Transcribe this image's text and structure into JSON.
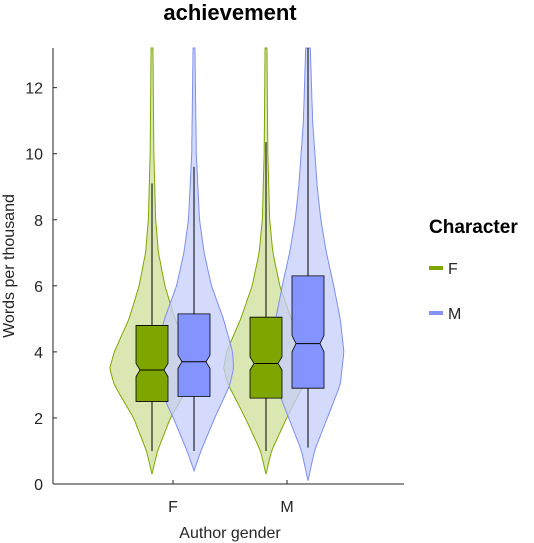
{
  "chart_data": {
    "type": "violin",
    "title": "achievement",
    "xlabel": "Author gender",
    "ylabel": "Words per thousand",
    "categories": [
      "F",
      "M"
    ],
    "ylim": [
      0,
      13.2
    ],
    "yticks": [
      0,
      2,
      4,
      6,
      8,
      10,
      12
    ],
    "grid": false,
    "legend": {
      "title": "Character",
      "placement": "right",
      "entries": [
        "F",
        "M"
      ]
    },
    "series": [
      {
        "name": "F",
        "color": "#7fa600",
        "fill": "#cfdf99",
        "box_color": "#7fa600",
        "violins": [
          {
            "category": "F",
            "min": 0.3,
            "max": 13.2,
            "whisker_low": 1.0,
            "q1": 2.5,
            "median": 3.45,
            "q3": 4.8,
            "whisker_high": 9.1,
            "notch_low": 3.25,
            "notch_high": 3.65,
            "density": [
              [
                0.3,
                0.0
              ],
              [
                1.0,
                0.12
              ],
              [
                2.0,
                0.4
              ],
              [
                3.0,
                0.82
              ],
              [
                3.5,
                0.92
              ],
              [
                4.0,
                0.82
              ],
              [
                5.0,
                0.5
              ],
              [
                6.0,
                0.28
              ],
              [
                7.0,
                0.14
              ],
              [
                8.0,
                0.08
              ],
              [
                10.0,
                0.04
              ],
              [
                13.2,
                0.02
              ]
            ]
          },
          {
            "category": "M",
            "min": 0.3,
            "max": 13.2,
            "whisker_low": 1.0,
            "q1": 2.6,
            "median": 3.65,
            "q3": 5.05,
            "whisker_high": 10.35,
            "notch_low": 3.45,
            "notch_high": 3.85,
            "density": [
              [
                0.3,
                0.0
              ],
              [
                1.0,
                0.12
              ],
              [
                2.0,
                0.45
              ],
              [
                3.0,
                0.82
              ],
              [
                3.5,
                0.92
              ],
              [
                4.0,
                0.86
              ],
              [
                5.0,
                0.55
              ],
              [
                6.0,
                0.3
              ],
              [
                7.0,
                0.15
              ],
              [
                8.0,
                0.08
              ],
              [
                10.0,
                0.04
              ],
              [
                13.2,
                0.02
              ]
            ]
          }
        ]
      },
      {
        "name": "M",
        "color": "#7b8ef2",
        "fill": "#c6cdfb",
        "box_color": "#8494ff",
        "violins": [
          {
            "category": "F",
            "min": 0.4,
            "max": 13.2,
            "whisker_low": 1.0,
            "q1": 2.65,
            "median": 3.7,
            "q3": 5.15,
            "whisker_high": 9.6,
            "notch_low": 3.5,
            "notch_high": 3.9,
            "density": [
              [
                0.4,
                0.0
              ],
              [
                1.0,
                0.15
              ],
              [
                2.0,
                0.45
              ],
              [
                3.0,
                0.78
              ],
              [
                3.5,
                0.86
              ],
              [
                4.0,
                0.84
              ],
              [
                5.0,
                0.64
              ],
              [
                6.0,
                0.38
              ],
              [
                7.0,
                0.22
              ],
              [
                8.0,
                0.12
              ],
              [
                10.0,
                0.05
              ],
              [
                13.2,
                0.02
              ]
            ]
          },
          {
            "category": "M",
            "min": 0.1,
            "max": 13.2,
            "whisker_low": 1.1,
            "q1": 2.9,
            "median": 4.25,
            "q3": 6.3,
            "whisker_high": 13.2,
            "notch_low": 4.0,
            "notch_high": 4.5,
            "density": [
              [
                0.1,
                0.0
              ],
              [
                1.0,
                0.14
              ],
              [
                2.0,
                0.42
              ],
              [
                3.0,
                0.7
              ],
              [
                4.0,
                0.78
              ],
              [
                5.0,
                0.7
              ],
              [
                6.0,
                0.56
              ],
              [
                7.0,
                0.4
              ],
              [
                8.0,
                0.28
              ],
              [
                9.0,
                0.2
              ],
              [
                11.0,
                0.1
              ],
              [
                13.2,
                0.05
              ]
            ]
          }
        ]
      }
    ]
  }
}
